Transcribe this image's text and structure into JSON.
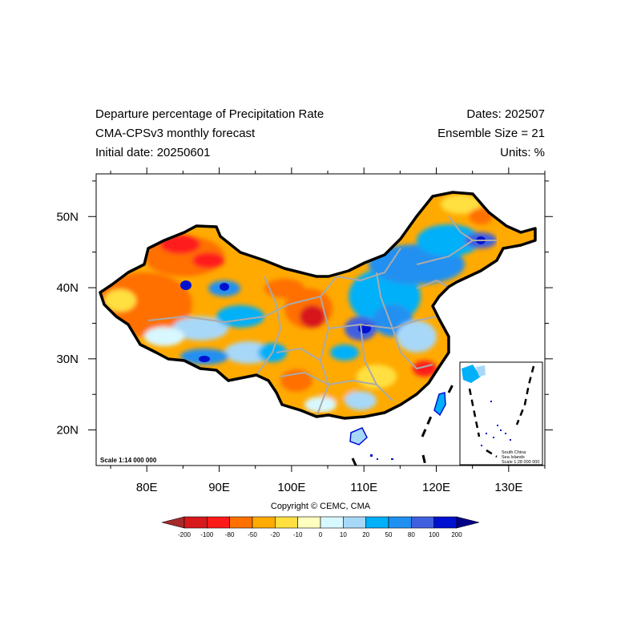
{
  "header": {
    "left": [
      "Departure percentage of Precipitation Rate",
      "CMA-CPSv3 monthly forecast",
      "Initial date: 20250601"
    ],
    "right": [
      "Dates: 202507",
      "Ensemble Size = 21",
      "Units: %"
    ]
  },
  "axes": {
    "lon_ticks": [
      "80E",
      "90E",
      "100E",
      "110E",
      "120E",
      "130E"
    ],
    "lat_ticks": [
      "50N",
      "40N",
      "30N",
      "20N"
    ],
    "lon_range": [
      73,
      135
    ],
    "lat_range": [
      15,
      56
    ]
  },
  "scale_label": "Scale 1:14 000 000",
  "inset": {
    "lines": [
      "South China",
      "Sea Islands",
      "Scale 1:28 000 000"
    ]
  },
  "copyright": "Copyright © CEMC, CMA",
  "colorbar": {
    "labels": [
      "-200",
      "-100",
      "-80",
      "-50",
      "-20",
      "-10",
      "0",
      "10",
      "20",
      "50",
      "80",
      "100",
      "200"
    ],
    "colors": [
      "#a52a2a",
      "#d7191c",
      "#ff1a1a",
      "#ff7000",
      "#ffaa00",
      "#ffe040",
      "#ffffc0",
      "#d8f8ff",
      "#a8d8f8",
      "#00b0f8",
      "#2090f0",
      "#4060e0",
      "#0010d0",
      "#000088"
    ]
  }
}
